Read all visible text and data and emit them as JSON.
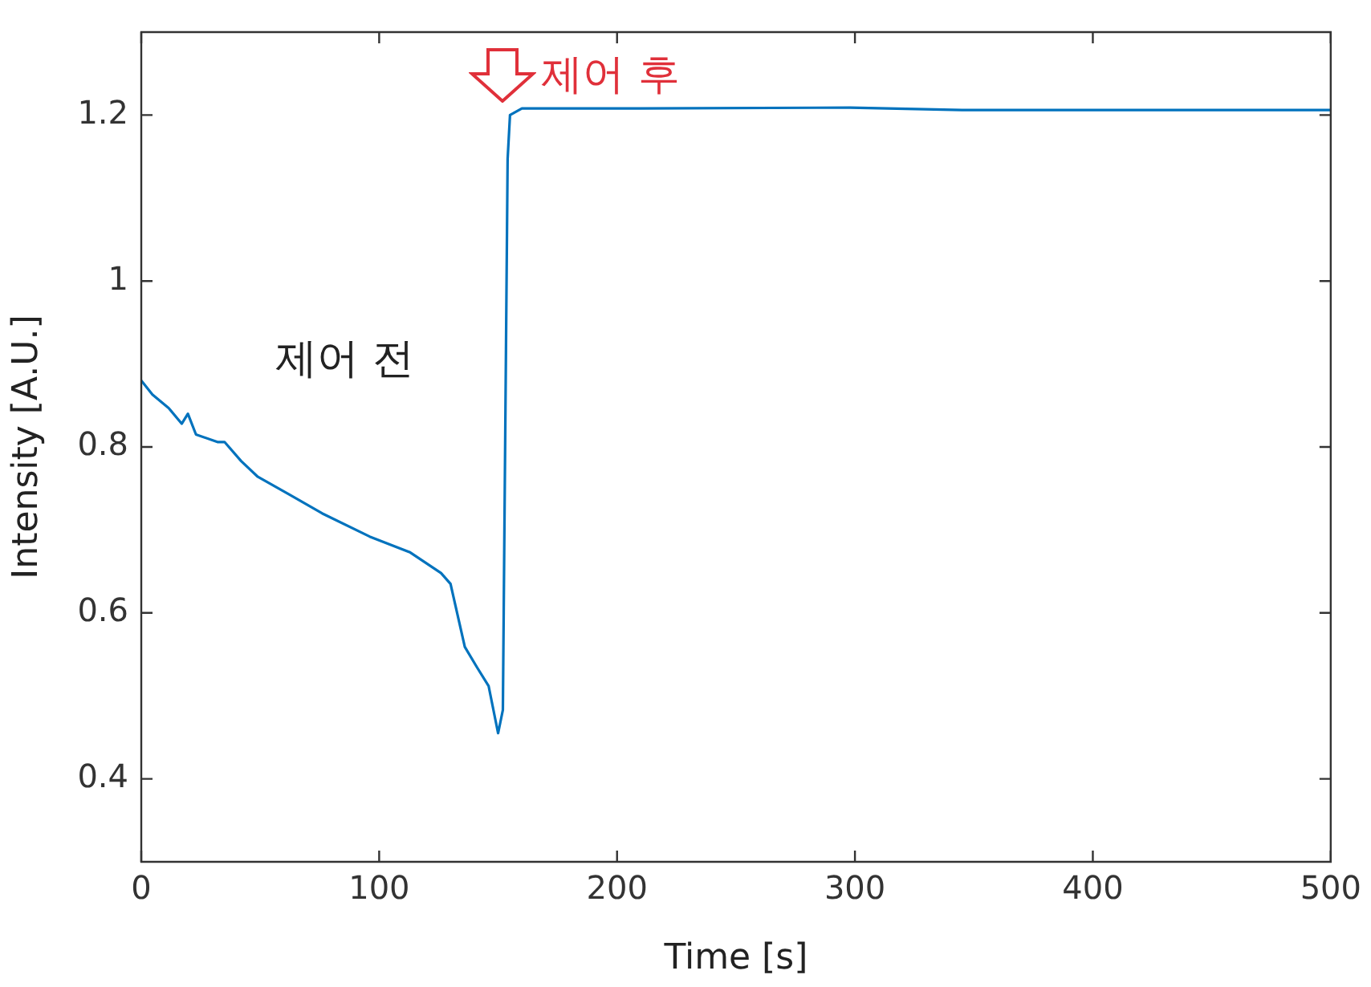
{
  "chart_data": {
    "type": "line",
    "xlabel": "Time [s]",
    "ylabel": "Intensity [A.U.]",
    "xlim": [
      0,
      500
    ],
    "xticks": [
      0,
      100,
      200,
      300,
      400,
      500
    ],
    "ylim": [
      0.3,
      1.3
    ],
    "yticks": [
      0.4,
      0.6,
      0.8,
      1,
      1.2
    ],
    "grid": false,
    "legend": false,
    "marker": "none",
    "line_style": "solid",
    "series": [
      {
        "color": "#0072bd",
        "x": [
          0,
          4.7,
          11.5,
          17,
          19.6,
          23,
          32,
          35,
          42,
          49,
          62,
          76,
          96,
          113,
          126,
          130,
          136,
          141,
          146,
          150,
          152,
          154,
          155,
          160,
          210,
          298,
          345,
          413,
          500
        ],
        "values": [
          0.88,
          0.863,
          0.847,
          0.828,
          0.84,
          0.815,
          0.806,
          0.806,
          0.783,
          0.764,
          0.743,
          0.72,
          0.692,
          0.673,
          0.648,
          0.635,
          0.559,
          0.535,
          0.512,
          0.455,
          0.483,
          1.147,
          1.2,
          1.208,
          1.208,
          1.209,
          1.206,
          1.206,
          1.206
        ]
      }
    ],
    "annotations": [
      "제어 전",
      "제어 후"
    ]
  }
}
